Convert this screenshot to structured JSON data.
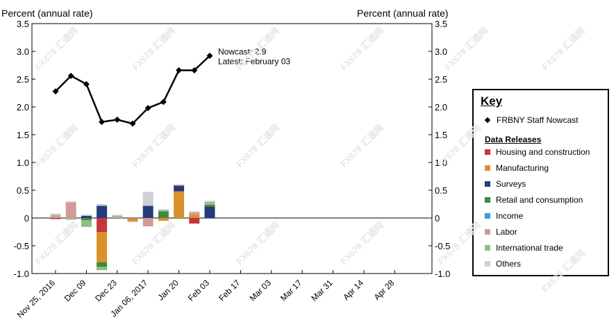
{
  "chart_data": {
    "type": "bar",
    "ylabel_left": "Percent (annual rate)",
    "ylabel_right": "Percent (annual rate)",
    "ylim": [
      -1.0,
      3.5
    ],
    "yticks": [
      "3.5",
      "3.0",
      "2.5",
      "2.0",
      "1.5",
      "1.0",
      "0.5",
      "0",
      "-0.5",
      "-1.0"
    ],
    "ytick_values": [
      3.5,
      3.0,
      2.5,
      2.0,
      1.5,
      1.0,
      0.5,
      0,
      -0.5,
      -1.0
    ],
    "xtick_labels": [
      "Nov 25, 2016",
      "Dec 09",
      "Dec 23",
      "Jan 06, 2017",
      "Jan 20",
      "Feb 03",
      "Feb 17",
      "Mar 03",
      "Mar 17",
      "Mar 31",
      "Apr 14",
      "Apr 28"
    ],
    "weeks": [
      "Nov 25",
      "Dec 02",
      "Dec 09",
      "Dec 16",
      "Dec 23",
      "Dec 30",
      "Jan 06",
      "Jan 13",
      "Jan 20",
      "Jan 27",
      "Feb 03"
    ],
    "nowcast": [
      2.28,
      2.56,
      2.41,
      1.73,
      1.77,
      1.7,
      1.98,
      2.09,
      2.66,
      2.66,
      2.92
    ],
    "annotation": {
      "line1": "Nowcast:  2.9",
      "line2": "Latest: February 03"
    },
    "series": [
      {
        "name": "Housing and construction",
        "color": "#c8353b",
        "values": [
          -0.02,
          0,
          0,
          -0.25,
          0,
          0,
          0,
          0,
          0,
          -0.1,
          0
        ]
      },
      {
        "name": "Manufacturing",
        "color": "#d9912c",
        "values": [
          0,
          0,
          0,
          -0.55,
          0,
          -0.05,
          0,
          -0.05,
          0.48,
          0.06,
          0
        ]
      },
      {
        "name": "Surveys",
        "color": "#243b7c",
        "values": [
          0,
          0,
          0.04,
          0.22,
          0,
          0,
          0.22,
          0,
          0.1,
          0,
          0.2
        ]
      },
      {
        "name": "Retail and consumption",
        "color": "#3e8a3e",
        "values": [
          0,
          0,
          -0.04,
          -0.08,
          0,
          0,
          0,
          0.12,
          0,
          0,
          0.04
        ]
      },
      {
        "name": "Income",
        "color": "#2aa6dc",
        "values": [
          0,
          0,
          0,
          0,
          0,
          0,
          0,
          0,
          0,
          0,
          0
        ]
      },
      {
        "name": "Labor",
        "color": "#d29a96",
        "values": [
          0.03,
          0.28,
          0,
          0,
          0.02,
          -0.02,
          -0.15,
          0,
          0.02,
          0.04,
          0.02
        ]
      },
      {
        "name": "International trade",
        "color": "#8fbd85",
        "values": [
          0.02,
          -0.03,
          -0.12,
          -0.06,
          0.02,
          0,
          0,
          0.02,
          0,
          0,
          0.03
        ]
      },
      {
        "name": "Others",
        "color": "#cfcfd4",
        "values": [
          0.03,
          0.02,
          0.02,
          0.03,
          0.02,
          0,
          0.25,
          0.02,
          0,
          0.02,
          0.02
        ]
      }
    ],
    "grid": false
  },
  "key": {
    "title": "Key",
    "nowcast_label": "FRBNY Staff Nowcast",
    "subtitle": "Data Releases"
  },
  "watermark": "FX678 汇通网"
}
